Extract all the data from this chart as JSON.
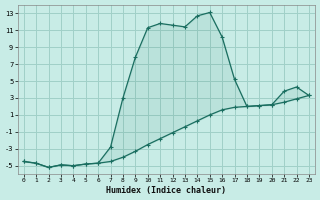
{
  "xlabel": "Humidex (Indice chaleur)",
  "background_color": "#c8ece6",
  "grid_color": "#a0d0c8",
  "line_color": "#1a6e60",
  "xlim": [
    -0.5,
    23.5
  ],
  "ylim": [
    -6.0,
    14.0
  ],
  "xticks": [
    0,
    1,
    2,
    3,
    4,
    5,
    6,
    7,
    8,
    9,
    10,
    11,
    12,
    13,
    14,
    15,
    16,
    17,
    18,
    19,
    20,
    21,
    22,
    23
  ],
  "yticks": [
    -5,
    -3,
    -1,
    1,
    3,
    5,
    7,
    9,
    11,
    13
  ],
  "curve1_x": [
    0,
    1,
    2,
    3,
    4,
    5,
    6,
    7,
    8,
    9,
    10,
    11,
    12,
    13,
    14,
    15,
    16,
    17,
    18,
    19,
    20,
    21,
    22,
    23
  ],
  "curve1_y": [
    -4.5,
    -4.7,
    -5.2,
    -4.9,
    -5.0,
    -4.8,
    -4.7,
    -2.8,
    3.0,
    7.8,
    11.3,
    11.8,
    11.6,
    11.4,
    12.7,
    13.1,
    10.2,
    5.2,
    2.0,
    2.1,
    2.2,
    3.8,
    4.3,
    3.3
  ],
  "curve2_x": [
    0,
    1,
    2,
    3,
    4,
    5,
    6,
    7,
    8,
    9,
    10,
    11,
    12,
    13,
    14,
    15,
    16,
    17,
    18,
    19,
    20,
    21,
    22,
    23
  ],
  "curve2_y": [
    -4.5,
    -4.7,
    -5.2,
    -4.9,
    -5.0,
    -4.8,
    -4.7,
    -4.5,
    -4.0,
    -3.3,
    -2.5,
    -1.8,
    -1.1,
    -0.4,
    0.3,
    1.0,
    1.6,
    1.9,
    2.0,
    2.1,
    2.2,
    2.5,
    2.9,
    3.3
  ]
}
